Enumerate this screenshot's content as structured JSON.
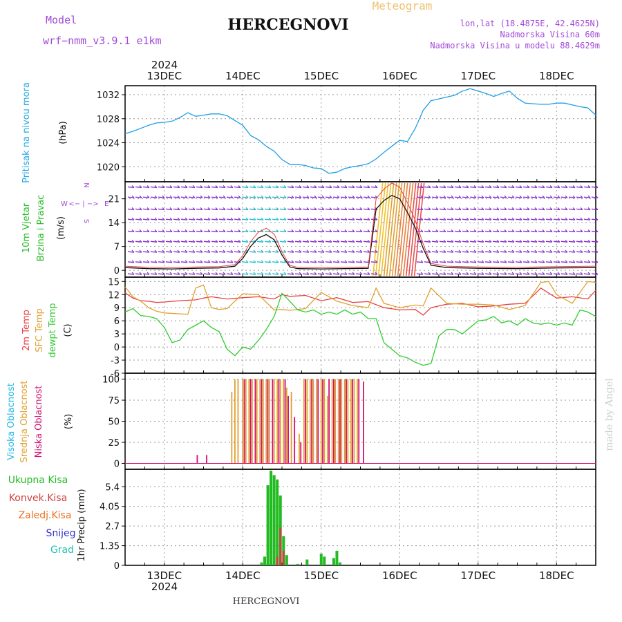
{
  "header": {
    "model_label": "Model",
    "model_name": "wrf−nmm_v3.9.1  e1km",
    "title": "HERCEGNOVI",
    "meteogram_label": "Meteogram",
    "coords": "lon,lat (18.4875E, 42.4625N)",
    "altitude": "Nadmorska Visina 60m",
    "model_altitude": "Nadmorska Visina u modelu 88.4629m",
    "year_top": "2024",
    "year_bottom": "2024",
    "footer_title": "HERCEGNOVI",
    "credit": "made by Angel"
  },
  "colors": {
    "pressure": "#1e9ee6",
    "temp2m": "#e84040",
    "sfc_temp": "#e0a030",
    "dewpt": "#2ecc2e",
    "cloud_high": "#22b8e8",
    "cloud_mid": "#e0a030",
    "cloud_low": "#d01070",
    "precip_total": "#22bb22",
    "precip_conv": "#d04040",
    "precip_frozen": "#e87020",
    "snow": "#3333cc",
    "graupel": "#22c0b0",
    "wind_label": "#22bb22",
    "wind_arrow": "#8833cc"
  },
  "chart_data": [
    {
      "type": "line",
      "panel": "pressure",
      "ylabel_1": "Pritisak na nivou mora",
      "ylabel_2": "(hPa)",
      "x_ticks": [
        "13DEC",
        "14DEC",
        "15DEC",
        "16DEC",
        "17DEC",
        "18DEC"
      ],
      "yticks": [
        1020,
        1024,
        1028,
        1032
      ],
      "ylim": [
        1017.5,
        1033.5
      ],
      "x_range_days": [
        12.5,
        18.5
      ],
      "grid": true,
      "series": [
        {
          "color_key": "pressure",
          "x": [
            12.5,
            12.6,
            12.7,
            12.8,
            12.9,
            13.0,
            13.1,
            13.2,
            13.3,
            13.4,
            13.5,
            13.6,
            13.7,
            13.8,
            13.9,
            14.0,
            14.1,
            14.2,
            14.3,
            14.4,
            14.5,
            14.6,
            14.7,
            14.8,
            14.9,
            15.0,
            15.1,
            15.2,
            15.3,
            15.4,
            15.5,
            15.6,
            15.7,
            15.8,
            15.9,
            16.0,
            16.1,
            16.2,
            16.3,
            16.4,
            16.5,
            16.6,
            16.7,
            16.8,
            16.9,
            17.0,
            17.1,
            17.2,
            17.3,
            17.4,
            17.5,
            17.6,
            17.7,
            17.8,
            17.9,
            18.0,
            18.1,
            18.2,
            18.3,
            18.4,
            18.5
          ],
          "y": [
            1025.5,
            1025.9,
            1026.4,
            1026.9,
            1027.3,
            1027.4,
            1027.6,
            1028.2,
            1029.0,
            1028.4,
            1028.6,
            1028.8,
            1028.8,
            1028.5,
            1027.7,
            1026.9,
            1025.2,
            1024.5,
            1023.4,
            1022.6,
            1021.2,
            1020.4,
            1020.4,
            1020.2,
            1019.8,
            1019.7,
            1018.9,
            1019.1,
            1019.7,
            1020.0,
            1020.2,
            1020.5,
            1021.3,
            1022.4,
            1023.4,
            1024.4,
            1024.2,
            1026.4,
            1029.4,
            1031.0,
            1031.3,
            1031.6,
            1031.9,
            1032.6,
            1033.0,
            1032.6,
            1032.2,
            1031.7,
            1032.2,
            1032.6,
            1031.4,
            1030.6,
            1030.5,
            1030.4,
            1030.4,
            1030.6,
            1030.6,
            1030.3,
            1030.0,
            1029.8,
            1028.6
          ]
        }
      ]
    },
    {
      "type": "line",
      "panel": "wind",
      "ylabel_1": "10m Vjetar",
      "ylabel_2": "Brzina i Pravac",
      "ylabel_3": "(m/s)",
      "compass_n": "N",
      "compass_w": "W",
      "compass_e": "E",
      "compass_s": "S",
      "compass_arrows": "<− | −>",
      "yticks": [
        0,
        7,
        14,
        21
      ],
      "ylim": [
        -2,
        26
      ],
      "grid": true,
      "series": [
        {
          "name_key": "speed",
          "color_key": "wind_line",
          "x": [
            12.5,
            12.8,
            13.1,
            13.4,
            13.7,
            13.9,
            14.0,
            14.1,
            14.2,
            14.3,
            14.4,
            14.5,
            14.6,
            14.7,
            15.0,
            15.3,
            15.6,
            15.7,
            15.8,
            15.9,
            16.0,
            16.1,
            16.2,
            16.3,
            16.4,
            16.6,
            17.0,
            17.5,
            18.0,
            18.5
          ],
          "y": [
            0.8,
            0.5,
            0.4,
            0.6,
            0.7,
            1.2,
            3.5,
            7.0,
            9.5,
            10.5,
            9.0,
            4.5,
            1.0,
            0.5,
            0.4,
            0.5,
            0.6,
            18.0,
            20.5,
            22.0,
            21.0,
            17.0,
            12.5,
            6.5,
            1.5,
            0.8,
            0.6,
            0.5,
            0.7,
            0.8
          ]
        }
      ]
    },
    {
      "type": "line",
      "panel": "temperature",
      "ylabel_1": "2m Temp",
      "ylabel_2": "SFC Temp",
      "ylabel_3": "dewpt Temp",
      "ylabel_4": "(C)",
      "yticks": [
        -6,
        -3,
        0,
        3,
        6,
        9,
        12,
        15
      ],
      "ylim": [
        -6,
        16
      ],
      "grid": true,
      "series": [
        {
          "color_key": "temp2m",
          "x": [
            12.5,
            12.6,
            12.7,
            12.8,
            12.9,
            13.0,
            13.2,
            13.4,
            13.5,
            13.6,
            13.8,
            14.0,
            14.2,
            14.4,
            14.5,
            14.6,
            14.8,
            15.0,
            15.2,
            15.4,
            15.6,
            15.8,
            16.0,
            16.2,
            16.3,
            16.4,
            16.6,
            16.8,
            17.0,
            17.2,
            17.4,
            17.6,
            17.8,
            18.0,
            18.2,
            18.4,
            18.5
          ],
          "y": [
            12.4,
            11.2,
            10.6,
            10.5,
            10.2,
            10.3,
            10.6,
            10.8,
            11.2,
            11.5,
            11.0,
            11.3,
            11.5,
            11.0,
            12.0,
            11.6,
            11.8,
            10.6,
            11.3,
            10.2,
            10.4,
            9.0,
            8.5,
            8.6,
            7.3,
            9.0,
            9.8,
            10.0,
            9.2,
            9.4,
            9.8,
            10.0,
            13.5,
            11.2,
            11.5,
            11.0,
            13.0
          ]
        },
        {
          "color_key": "sfc_temp",
          "x": [
            12.5,
            12.6,
            12.7,
            12.8,
            12.9,
            13.0,
            13.2,
            13.3,
            13.4,
            13.5,
            13.6,
            13.7,
            13.8,
            14.0,
            14.2,
            14.4,
            14.5,
            14.6,
            14.8,
            15.0,
            15.2,
            15.4,
            15.6,
            15.7,
            15.8,
            16.0,
            16.2,
            16.3,
            16.4,
            16.6,
            16.8,
            17.0,
            17.2,
            17.4,
            17.6,
            17.8,
            17.9,
            18.0,
            18.2,
            18.4,
            18.5
          ],
          "y": [
            13.8,
            11.5,
            10.5,
            9.0,
            8.2,
            7.8,
            7.6,
            7.5,
            13.5,
            14.2,
            9.0,
            8.6,
            8.8,
            12.2,
            12.0,
            8.5,
            8.6,
            8.4,
            8.8,
            12.5,
            10.5,
            9.5,
            9.0,
            13.5,
            10.0,
            9.0,
            9.6,
            9.4,
            13.5,
            10.0,
            9.8,
            9.8,
            9.6,
            8.6,
            9.5,
            14.8,
            15.0,
            12.0,
            10.0,
            15.0,
            14.8
          ]
        },
        {
          "color_key": "dewpt",
          "x": [
            12.5,
            12.6,
            12.7,
            12.8,
            12.9,
            13.0,
            13.1,
            13.2,
            13.3,
            13.4,
            13.5,
            13.6,
            13.7,
            13.8,
            13.9,
            14.0,
            14.1,
            14.2,
            14.3,
            14.4,
            14.5,
            14.6,
            14.7,
            14.8,
            14.9,
            15.0,
            15.1,
            15.2,
            15.3,
            15.4,
            15.5,
            15.6,
            15.7,
            15.8,
            15.9,
            16.0,
            16.1,
            16.2,
            16.3,
            16.4,
            16.5,
            16.6,
            16.7,
            16.8,
            16.9,
            17.0,
            17.1,
            17.2,
            17.3,
            17.4,
            17.5,
            17.6,
            17.7,
            17.8,
            17.9,
            18.0,
            18.1,
            18.2,
            18.3,
            18.4,
            18.5
          ],
          "y": [
            8.0,
            8.8,
            7.2,
            7.0,
            6.5,
            4.5,
            1.0,
            1.6,
            4.0,
            5.0,
            6.0,
            4.5,
            3.5,
            -0.5,
            -2.0,
            0.0,
            -0.5,
            1.5,
            4.0,
            7.0,
            12.3,
            10.5,
            8.5,
            8.0,
            8.5,
            7.5,
            8.0,
            7.5,
            8.5,
            7.5,
            8.0,
            6.5,
            6.5,
            1.0,
            -0.5,
            -2.0,
            -2.5,
            -3.5,
            -4.2,
            -3.8,
            2.5,
            4.0,
            4.0,
            3.0,
            4.5,
            6.0,
            6.2,
            7.0,
            5.5,
            6.0,
            5.0,
            6.5,
            5.5,
            5.2,
            5.5,
            5.0,
            5.5,
            5.0,
            8.5,
            8.0,
            7.0
          ]
        }
      ]
    },
    {
      "type": "bar",
      "panel": "clouds",
      "ylabel_1": "Visoka Oblacnost",
      "ylabel_2": "Srednja Oblacnost",
      "ylabel_3": "Niska Oblacnost",
      "ylabel_4": "(%)",
      "yticks": [
        0,
        25,
        50,
        75,
        100
      ],
      "ylim": [
        -7,
        107
      ],
      "grid": true,
      "series": [
        {
          "color_key": "cloud_mid",
          "x": [
            13.86,
            13.9,
            13.94,
            14.0,
            14.04,
            14.08,
            14.12,
            14.18,
            14.22,
            14.26,
            14.3,
            14.34,
            14.4,
            14.44,
            14.48,
            14.52,
            14.56,
            14.62,
            14.72,
            14.78,
            14.82,
            14.86,
            14.9,
            14.94,
            15.0,
            15.04,
            15.08,
            15.14,
            15.18,
            15.22,
            15.26,
            15.3,
            15.34,
            15.38,
            15.42,
            15.46
          ],
          "y": [
            85,
            100,
            100,
            100,
            100,
            100,
            100,
            100,
            100,
            100,
            100,
            100,
            100,
            100,
            100,
            100,
            90,
            85,
            35,
            100,
            100,
            100,
            100,
            100,
            100,
            100,
            80,
            100,
            100,
            100,
            100,
            100,
            100,
            100,
            100,
            100
          ]
        },
        {
          "color_key": "cloud_low",
          "x": [
            13.42,
            13.54,
            14.02,
            14.1,
            14.16,
            14.24,
            14.32,
            14.38,
            14.46,
            14.54,
            14.58,
            14.66,
            14.74,
            14.8,
            14.88,
            14.96,
            15.02,
            15.1,
            15.16,
            15.24,
            15.32,
            15.4,
            15.48,
            15.54
          ],
          "y": [
            10,
            10,
            100,
            100,
            100,
            100,
            100,
            100,
            100,
            100,
            80,
            55,
            25,
            100,
            100,
            100,
            100,
            100,
            100,
            100,
            100,
            100,
            100,
            97
          ]
        }
      ]
    },
    {
      "type": "bar",
      "panel": "precip",
      "legend": [
        "Ukupna Kisa",
        "Konvek.Kisa",
        "Zaledj.Kisa",
        "Snijeg",
        "Grad"
      ],
      "ylabel": "1hr Precip (mm)",
      "yticks": [
        0,
        1.35,
        2.7,
        4.05,
        5.4
      ],
      "ylim": [
        0,
        6.6
      ],
      "grid": true,
      "series": [
        {
          "color_key": "precip_total",
          "x": [
            14.24,
            14.28,
            14.32,
            14.36,
            14.4,
            14.44,
            14.48,
            14.52,
            14.56,
            14.7,
            14.82,
            15.0,
            15.04,
            15.16,
            15.2,
            15.24
          ],
          "y": [
            0.2,
            0.6,
            5.5,
            6.5,
            6.2,
            5.9,
            4.8,
            2.0,
            0.7,
            0.1,
            0.4,
            0.8,
            0.6,
            0.5,
            1.0,
            0.2
          ]
        },
        {
          "color_key": "precip_conv",
          "x": [
            14.44,
            14.48,
            14.52
          ],
          "y": [
            0.6,
            2.6,
            1.0
          ]
        }
      ]
    }
  ]
}
